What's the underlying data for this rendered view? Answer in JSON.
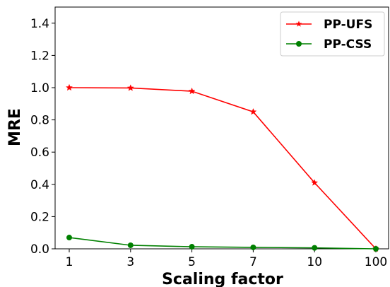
{
  "chart_data": {
    "type": "line",
    "title": "",
    "xlabel": "Scaling factor",
    "ylabel": "MRE",
    "categories": [
      "1",
      "3",
      "5",
      "7",
      "10",
      "100"
    ],
    "ylim": [
      0,
      1.5
    ],
    "yticks": [
      "0.0",
      "0.2",
      "0.4",
      "0.6",
      "0.8",
      "1.0",
      "1.2",
      "1.4"
    ],
    "grid": false,
    "legend_position": "top-right",
    "series": [
      {
        "name": "PP-UFS",
        "color": "#ff0000",
        "marker": "star",
        "values": [
          1.0,
          0.998,
          0.978,
          0.85,
          0.41,
          0.0
        ]
      },
      {
        "name": "PP-CSS",
        "color": "#008000",
        "marker": "circle",
        "values": [
          0.07,
          0.022,
          0.013,
          0.009,
          0.006,
          0.0
        ]
      }
    ]
  }
}
